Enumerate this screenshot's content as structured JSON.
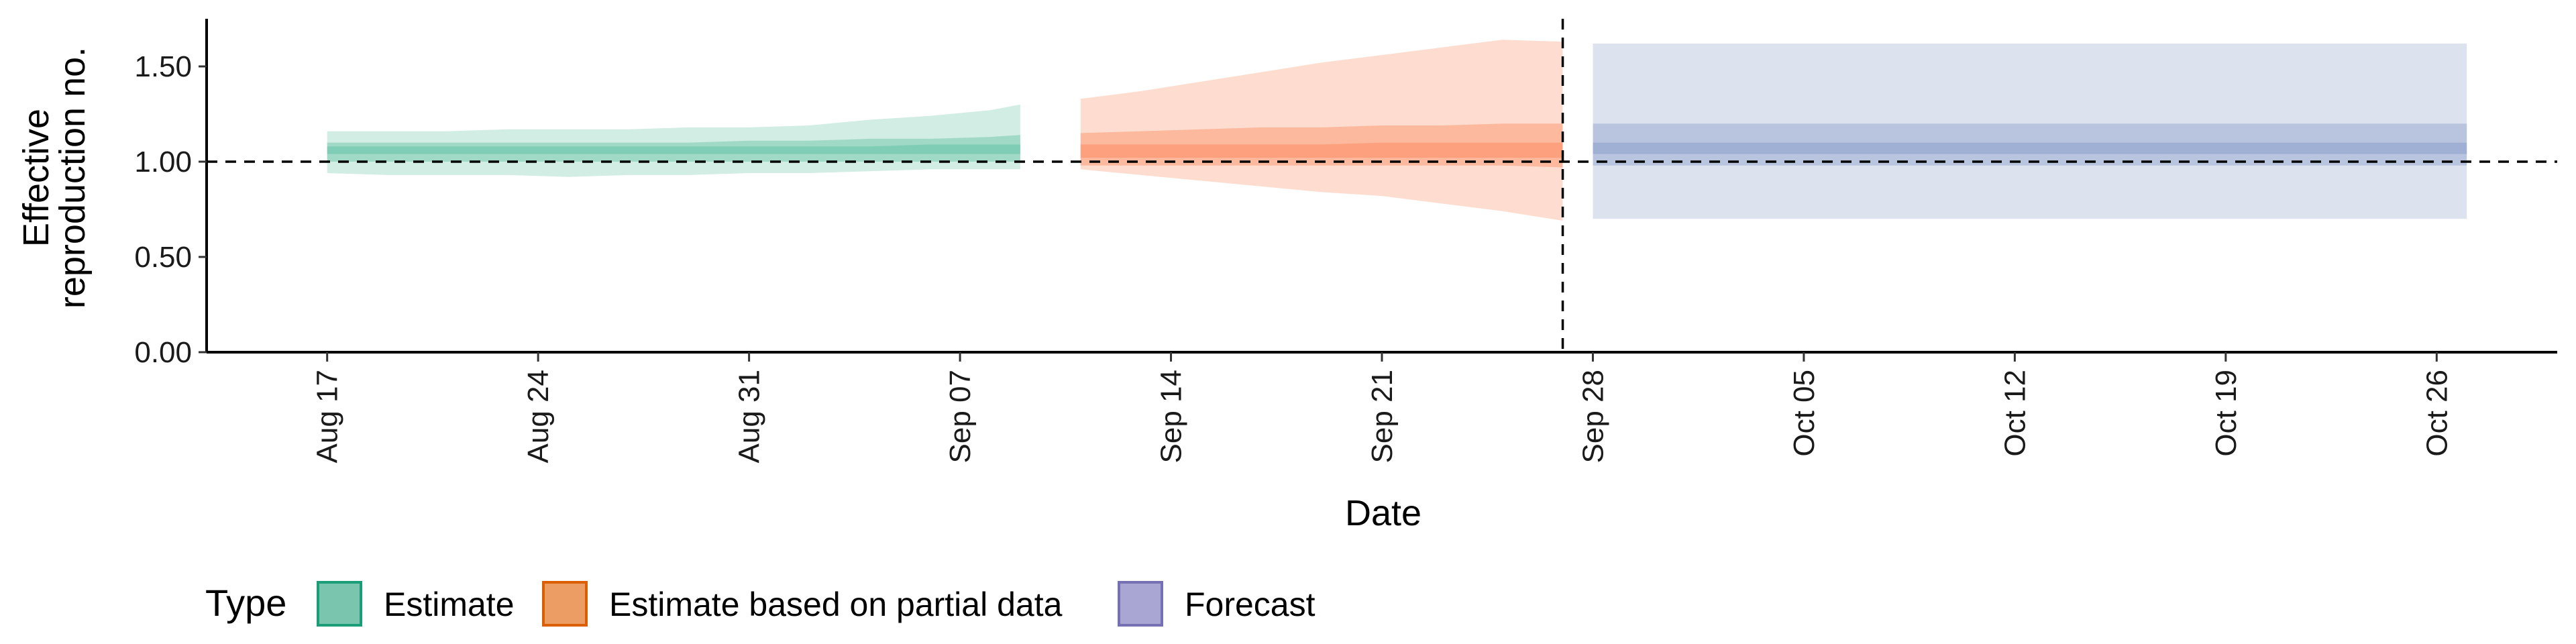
{
  "chart_data": {
    "type": "area",
    "xlabel": "Date",
    "ylabel_line1": "Effective",
    "ylabel_line2": "reproduction no.",
    "ylim": [
      0,
      1.75
    ],
    "y_ticks": [
      "0.00",
      "0.50",
      "1.00",
      "1.50"
    ],
    "x_range": [
      "2020-08-13",
      "2020-10-30"
    ],
    "x_ticks": [
      {
        "date": "2020-08-17",
        "label": "Aug 17"
      },
      {
        "date": "2020-08-24",
        "label": "Aug 24"
      },
      {
        "date": "2020-08-31",
        "label": "Aug 31"
      },
      {
        "date": "2020-09-07",
        "label": "Sep 07"
      },
      {
        "date": "2020-09-14",
        "label": "Sep 14"
      },
      {
        "date": "2020-09-21",
        "label": "Sep 21"
      },
      {
        "date": "2020-09-28",
        "label": "Sep 28"
      },
      {
        "date": "2020-10-05",
        "label": "Oct 05"
      },
      {
        "date": "2020-10-12",
        "label": "Oct 12"
      },
      {
        "date": "2020-10-19",
        "label": "Oct 19"
      },
      {
        "date": "2020-10-26",
        "label": "Oct 26"
      }
    ],
    "reference_line_y": 1.0,
    "reference_line_date": "2020-09-27",
    "legend_title": "Type",
    "legend_position": "bottom-left",
    "series": [
      {
        "name": "Estimate",
        "color": "#1b9e77",
        "fill_color": "#66c2a5",
        "dates": [
          "2020-08-17",
          "2020-08-19",
          "2020-08-21",
          "2020-08-23",
          "2020-08-25",
          "2020-08-27",
          "2020-08-29",
          "2020-08-31",
          "2020-09-02",
          "2020-09-04",
          "2020-09-06",
          "2020-09-08",
          "2020-09-09"
        ],
        "outer_low": [
          0.94,
          0.93,
          0.93,
          0.93,
          0.92,
          0.93,
          0.93,
          0.94,
          0.94,
          0.95,
          0.96,
          0.96,
          0.96
        ],
        "outer_high": [
          1.16,
          1.16,
          1.16,
          1.17,
          1.17,
          1.17,
          1.18,
          1.18,
          1.19,
          1.22,
          1.24,
          1.27,
          1.3
        ],
        "mid_low": [
          1.0,
          1.0,
          1.0,
          1.0,
          1.0,
          1.0,
          1.0,
          1.0,
          1.0,
          1.0,
          1.0,
          1.0,
          1.0
        ],
        "mid_high": [
          1.1,
          1.1,
          1.1,
          1.1,
          1.1,
          1.1,
          1.1,
          1.11,
          1.11,
          1.12,
          1.12,
          1.13,
          1.14
        ],
        "inner_low": [
          1.04,
          1.04,
          1.04,
          1.04,
          1.04,
          1.04,
          1.04,
          1.04,
          1.04,
          1.04,
          1.04,
          1.04,
          1.04
        ],
        "inner_high": [
          1.08,
          1.08,
          1.08,
          1.08,
          1.08,
          1.08,
          1.08,
          1.08,
          1.08,
          1.08,
          1.09,
          1.09,
          1.09
        ]
      },
      {
        "name": "Estimate based on partial data",
        "color": "#d95f02",
        "fill_color": "#fc8d62",
        "dates": [
          "2020-09-11",
          "2020-09-13",
          "2020-09-15",
          "2020-09-17",
          "2020-09-19",
          "2020-09-21",
          "2020-09-23",
          "2020-09-25",
          "2020-09-27"
        ],
        "outer_low": [
          0.96,
          0.93,
          0.9,
          0.87,
          0.84,
          0.82,
          0.78,
          0.74,
          0.69
        ],
        "outer_high": [
          1.33,
          1.37,
          1.42,
          1.47,
          1.52,
          1.56,
          1.6,
          1.64,
          1.63
        ],
        "mid_low": [
          0.98,
          0.98,
          0.98,
          0.98,
          0.98,
          0.98,
          0.98,
          0.98,
          0.97
        ],
        "mid_high": [
          1.15,
          1.16,
          1.17,
          1.18,
          1.18,
          1.19,
          1.19,
          1.2,
          1.2
        ],
        "inner_low": [
          1.02,
          1.02,
          1.02,
          1.02,
          1.02,
          1.02,
          1.02,
          1.02,
          1.02
        ],
        "inner_high": [
          1.09,
          1.09,
          1.09,
          1.09,
          1.09,
          1.1,
          1.1,
          1.1,
          1.1
        ]
      },
      {
        "name": "Forecast",
        "color": "#7570b3",
        "fill_color": "#8da0cb",
        "dates": [
          "2020-09-28",
          "2020-10-27"
        ],
        "outer_low": [
          0.7,
          0.7
        ],
        "outer_high": [
          1.62,
          1.62
        ],
        "mid_low": [
          0.98,
          0.98
        ],
        "mid_high": [
          1.2,
          1.2
        ],
        "inner_low": [
          1.04,
          1.04
        ],
        "inner_high": [
          1.1,
          1.1
        ]
      }
    ]
  }
}
